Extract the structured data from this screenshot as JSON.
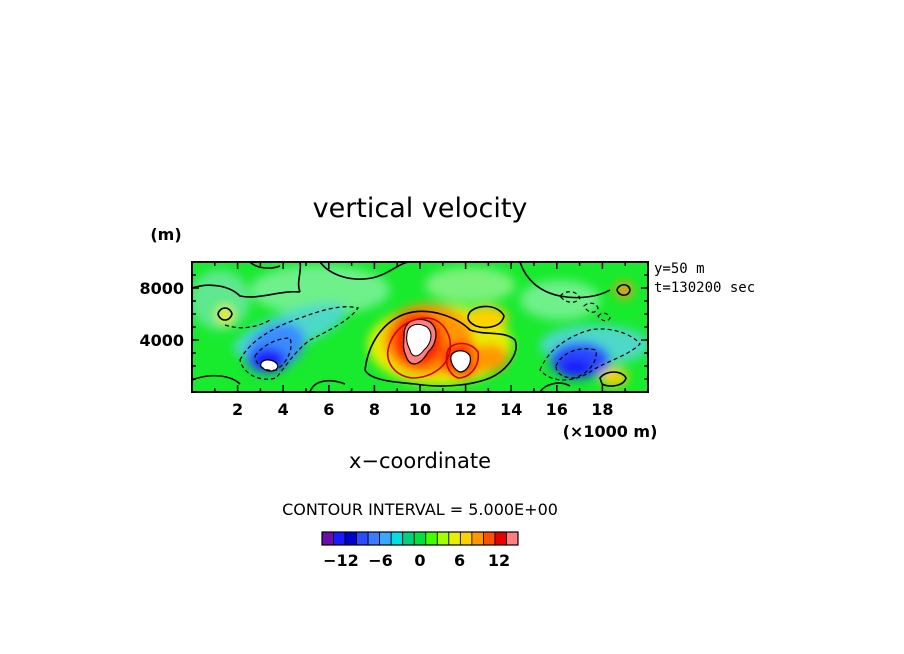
{
  "chart_data": {
    "type": "contour",
    "title": "vertical velocity",
    "xlabel": "x−coordinate",
    "x_unit": "(×1000 m)",
    "y_unit": "(m)",
    "xlim": [
      0,
      20
    ],
    "ylim": [
      0,
      10000
    ],
    "xticks": [
      2,
      4,
      6,
      8,
      10,
      12,
      14,
      16,
      18
    ],
    "xtick_labels": [
      "2",
      "4",
      "6",
      "8",
      "10",
      "12",
      "14",
      "16",
      "18"
    ],
    "yticks": [
      4000,
      8000
    ],
    "ytick_labels": [
      "4000",
      "8000"
    ],
    "side_info": [
      "y=50 m",
      "t=130200 sec"
    ],
    "contour_interval_text": "CONTOUR INTERVAL = 5.000E+00",
    "colorbar": {
      "min": -14,
      "max": 14,
      "step": 2,
      "tick_values": [
        -12,
        -6,
        0,
        6,
        12
      ],
      "tick_labels": [
        "−12",
        "−6",
        "0",
        "6",
        "12"
      ],
      "colors": [
        "#6a0dad",
        "#1a1aff",
        "#0000cc",
        "#2b4bff",
        "#3a7bff",
        "#3aa8ff",
        "#00e0e0",
        "#00d080",
        "#00e040",
        "#40ff00",
        "#a0ff00",
        "#e8f000",
        "#ffd000",
        "#ff9800",
        "#ff5000",
        "#e80000",
        "#ff7f7f"
      ]
    },
    "features": [
      {
        "kind": "updraft",
        "x_km": 10.2,
        "z_m": 3500,
        "max_w": 18
      },
      {
        "kind": "updraft",
        "x_km": 11.9,
        "z_m": 2300,
        "max_w": 16
      },
      {
        "kind": "updraft",
        "x_km": 12.7,
        "z_m": 5500,
        "max_w": 7
      },
      {
        "kind": "updraft",
        "x_km": 18.9,
        "z_m": 8000,
        "max_w": 9
      },
      {
        "kind": "updraft",
        "x_km": 17.9,
        "z_m": 1200,
        "max_w": 7
      },
      {
        "kind": "downdraft",
        "x_km": 3.6,
        "z_m": 2300,
        "min_w": -16
      },
      {
        "kind": "downdraft",
        "x_km": 16.8,
        "z_m": 2000,
        "min_w": -11
      },
      {
        "kind": "downdraft",
        "x_km": 5.0,
        "z_m": 4800,
        "min_w": -6
      }
    ]
  }
}
